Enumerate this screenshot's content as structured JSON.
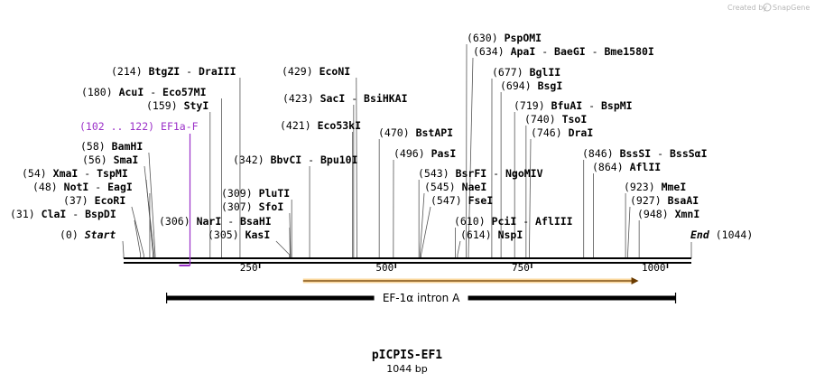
{
  "creator": {
    "text": "Created by",
    "brand": "SnapGene"
  },
  "plasmid": {
    "name": "pICPIS-EF1",
    "length": "1044 bp",
    "total_bp": 1044
  },
  "scale": {
    "ticks": [
      {
        "bp": 250,
        "label": "250"
      },
      {
        "bp": 500,
        "label": "500"
      },
      {
        "bp": 750,
        "label": "750"
      },
      {
        "bp": 1000,
        "label": "1000"
      }
    ]
  },
  "ends": [
    {
      "name": "Start",
      "pos": "(0)",
      "bp": 0
    },
    {
      "name": "End",
      "pos": "(1044)",
      "bp": 1044
    }
  ],
  "primer": {
    "label": "EF1a-F",
    "pos": "(102 .. 122)",
    "start_bp": 102,
    "end_bp": 122,
    "color": "#9b30c8"
  },
  "features": [
    {
      "label": "EF-1α intron A",
      "start_bp": 79,
      "end_bp": 1015,
      "color": "#000000"
    }
  ],
  "orf": {
    "start_bp": 330,
    "end_bp": 947,
    "color": "#f5a623"
  },
  "sites": [
    {
      "pos": "(31)",
      "bp": 31,
      "names": [
        "ClaI",
        "BspDI"
      ]
    },
    {
      "pos": "(37)",
      "bp": 37,
      "names": [
        "EcoRI"
      ]
    },
    {
      "pos": "(48)",
      "bp": 48,
      "names": [
        "NotI",
        "EagI"
      ]
    },
    {
      "pos": "(54)",
      "bp": 54,
      "names": [
        "XmaI",
        "TspMI"
      ]
    },
    {
      "pos": "(56)",
      "bp": 56,
      "names": [
        "SmaI"
      ]
    },
    {
      "pos": "(58)",
      "bp": 58,
      "names": [
        "BamHI"
      ]
    },
    {
      "pos": "(159)",
      "bp": 159,
      "names": [
        "StyI"
      ]
    },
    {
      "pos": "(180)",
      "bp": 180,
      "names": [
        "AcuI",
        "Eco57MI"
      ]
    },
    {
      "pos": "(214)",
      "bp": 214,
      "names": [
        "BtgZI",
        "DraIII"
      ]
    },
    {
      "pos": "(306)",
      "bp": 306,
      "names": [
        "NarI",
        "BsaHI"
      ]
    },
    {
      "pos": "(305)",
      "bp": 305,
      "names": [
        "KasI"
      ]
    },
    {
      "pos": "(307)",
      "bp": 307,
      "names": [
        "SfoI"
      ]
    },
    {
      "pos": "(309)",
      "bp": 309,
      "names": [
        "PluTI"
      ]
    },
    {
      "pos": "(342)",
      "bp": 342,
      "names": [
        "BbvCI",
        "Bpu10I"
      ]
    },
    {
      "pos": "(421)",
      "bp": 421,
      "names": [
        "Eco53kI"
      ]
    },
    {
      "pos": "(423)",
      "bp": 423,
      "names": [
        "SacI",
        "BsiHKAI"
      ]
    },
    {
      "pos": "(429)",
      "bp": 429,
      "names": [
        "EcoNI"
      ]
    },
    {
      "pos": "(470)",
      "bp": 470,
      "names": [
        "BstAPI"
      ]
    },
    {
      "pos": "(496)",
      "bp": 496,
      "names": [
        "PasI"
      ]
    },
    {
      "pos": "(543)",
      "bp": 543,
      "names": [
        "BsrFI",
        "NgoMIV"
      ]
    },
    {
      "pos": "(545)",
      "bp": 545,
      "names": [
        "NaeI"
      ]
    },
    {
      "pos": "(547)",
      "bp": 547,
      "names": [
        "FseI"
      ]
    },
    {
      "pos": "(610)",
      "bp": 610,
      "names": [
        "PciI",
        "AflIII"
      ]
    },
    {
      "pos": "(614)",
      "bp": 614,
      "names": [
        "NspI"
      ]
    },
    {
      "pos": "(630)",
      "bp": 630,
      "names": [
        "PspOMI"
      ]
    },
    {
      "pos": "(634)",
      "bp": 634,
      "names": [
        "ApaI",
        "BaeGI",
        "Bme1580I"
      ]
    },
    {
      "pos": "(677)",
      "bp": 677,
      "names": [
        "BglII"
      ]
    },
    {
      "pos": "(694)",
      "bp": 694,
      "names": [
        "BsgI"
      ]
    },
    {
      "pos": "(719)",
      "bp": 719,
      "names": [
        "BfuAI",
        "BspMI"
      ]
    },
    {
      "pos": "(740)",
      "bp": 740,
      "names": [
        "TsoI"
      ]
    },
    {
      "pos": "(746)",
      "bp": 746,
      "names": [
        "DraI"
      ]
    },
    {
      "pos": "(846)",
      "bp": 846,
      "names": [
        "BssSI",
        "BssSαI"
      ]
    },
    {
      "pos": "(864)",
      "bp": 864,
      "names": [
        "AflII"
      ]
    },
    {
      "pos": "(923)",
      "bp": 923,
      "names": [
        "MmeI"
      ]
    },
    {
      "pos": "(927)",
      "bp": 927,
      "names": [
        "BsaAI"
      ]
    },
    {
      "pos": "(948)",
      "bp": 948,
      "names": [
        "XmnI"
      ]
    }
  ]
}
